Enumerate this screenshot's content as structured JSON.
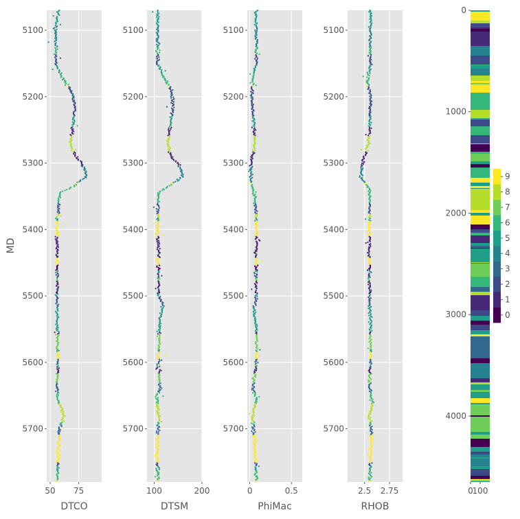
{
  "chart_data": {
    "type": "scatter",
    "style": "ggplot",
    "depth_label": "MD",
    "depth_range": [
      5070,
      5780
    ],
    "depth_ticks": [
      5100,
      5200,
      5300,
      5400,
      5500,
      5600,
      5700
    ],
    "colormap": "viridis",
    "color_range": [
      0,
      9
    ],
    "grid": true,
    "tracks": [
      {
        "name": "DTCO",
        "xlim": [
          47,
          95
        ],
        "xticks": [
          50,
          75
        ],
        "profile": [
          [
            5070,
            57
          ],
          [
            5100,
            55
          ],
          [
            5150,
            55
          ],
          [
            5170,
            60
          ],
          [
            5190,
            68
          ],
          [
            5210,
            72
          ],
          [
            5240,
            70
          ],
          [
            5270,
            68
          ],
          [
            5290,
            72
          ],
          [
            5300,
            78
          ],
          [
            5320,
            82
          ],
          [
            5335,
            70
          ],
          [
            5345,
            58
          ],
          [
            5400,
            56
          ],
          [
            5500,
            56
          ],
          [
            5550,
            56
          ],
          [
            5600,
            57
          ],
          [
            5650,
            56
          ],
          [
            5680,
            62
          ],
          [
            5700,
            58
          ],
          [
            5780,
            56
          ]
        ]
      },
      {
        "name": "DTSM",
        "xlim": [
          85,
          200
        ],
        "xticks": [
          100,
          200
        ],
        "profile": [
          [
            5070,
            108
          ],
          [
            5100,
            108
          ],
          [
            5150,
            107
          ],
          [
            5170,
            120
          ],
          [
            5190,
            135
          ],
          [
            5210,
            140
          ],
          [
            5240,
            135
          ],
          [
            5270,
            128
          ],
          [
            5290,
            135
          ],
          [
            5300,
            150
          ],
          [
            5320,
            160
          ],
          [
            5335,
            130
          ],
          [
            5345,
            108
          ],
          [
            5400,
            108
          ],
          [
            5500,
            110
          ],
          [
            5510,
            118
          ],
          [
            5550,
            110
          ],
          [
            5600,
            110
          ],
          [
            5640,
            112
          ],
          [
            5650,
            105
          ],
          [
            5680,
            110
          ],
          [
            5700,
            108
          ],
          [
            5780,
            108
          ]
        ]
      },
      {
        "name": "PhiMac",
        "xlim": [
          -0.03,
          0.63
        ],
        "xticks": [
          0.0,
          0.5
        ],
        "profile": [
          [
            5070,
            0.08
          ],
          [
            5100,
            0.08
          ],
          [
            5150,
            0.08
          ],
          [
            5170,
            0.04
          ],
          [
            5200,
            0.02
          ],
          [
            5230,
            0.04
          ],
          [
            5260,
            0.06
          ],
          [
            5280,
            0.05
          ],
          [
            5300,
            0.01
          ],
          [
            5330,
            0.02
          ],
          [
            5350,
            0.06
          ],
          [
            5400,
            0.08
          ],
          [
            5500,
            0.08
          ],
          [
            5520,
            0.05
          ],
          [
            5550,
            0.08
          ],
          [
            5600,
            0.08
          ],
          [
            5640,
            0.04
          ],
          [
            5655,
            0.08
          ],
          [
            5680,
            0.03
          ],
          [
            5700,
            0.05
          ],
          [
            5780,
            0.08
          ]
        ]
      },
      {
        "name": "RHOB",
        "xlim": [
          2.33,
          2.88
        ],
        "xticks": [
          2.5,
          2.75
        ],
        "profile": [
          [
            5070,
            2.56
          ],
          [
            5100,
            2.56
          ],
          [
            5150,
            2.56
          ],
          [
            5180,
            2.53
          ],
          [
            5200,
            2.56
          ],
          [
            5250,
            2.55
          ],
          [
            5270,
            2.54
          ],
          [
            5300,
            2.48
          ],
          [
            5320,
            2.46
          ],
          [
            5340,
            2.55
          ],
          [
            5400,
            2.55
          ],
          [
            5500,
            2.55
          ],
          [
            5550,
            2.56
          ],
          [
            5600,
            2.56
          ],
          [
            5640,
            2.55
          ],
          [
            5660,
            2.58
          ],
          [
            5680,
            2.55
          ],
          [
            5700,
            2.57
          ],
          [
            5780,
            2.55
          ]
        ]
      }
    ],
    "facies_strip": {
      "ylim": [
        0,
        4650
      ],
      "yticks": [
        0,
        1000,
        2000,
        3000,
        4000
      ],
      "xticks": [
        0,
        100
      ]
    },
    "colorbar": {
      "ticks": [
        0,
        1,
        2,
        3,
        4,
        5,
        6,
        7,
        8,
        9
      ]
    }
  }
}
